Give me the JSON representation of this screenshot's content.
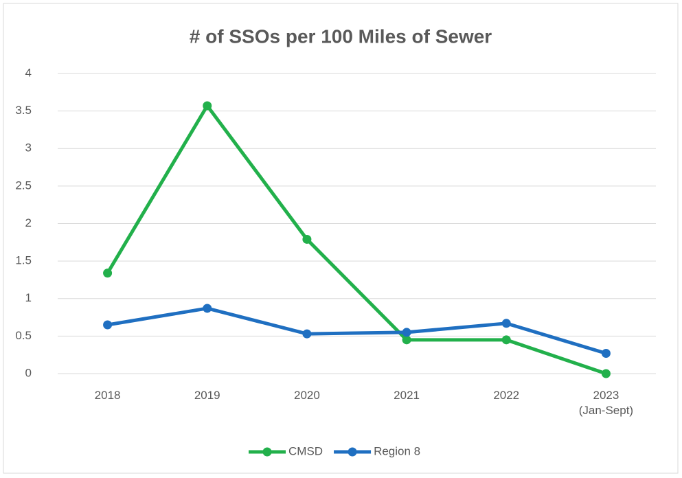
{
  "chart_data": {
    "type": "line",
    "title": "# of SSOs per 100 Miles of Sewer",
    "categories": [
      "2018",
      "2019",
      "2020",
      "2021",
      "2022",
      "2023\n(Jan-Sept)"
    ],
    "series": [
      {
        "name": "CMSD",
        "color": "#22b04b",
        "values": [
          1.34,
          3.57,
          1.79,
          0.45,
          0.45,
          0
        ]
      },
      {
        "name": "Region 8",
        "color": "#1f6fc1",
        "values": [
          0.65,
          0.87,
          0.53,
          0.55,
          0.67,
          0.27
        ]
      }
    ],
    "ylim": [
      0,
      4
    ],
    "yticks": [
      0,
      0.5,
      1,
      1.5,
      2,
      2.5,
      3,
      3.5,
      4
    ],
    "grid": true,
    "legend": "bottom"
  }
}
